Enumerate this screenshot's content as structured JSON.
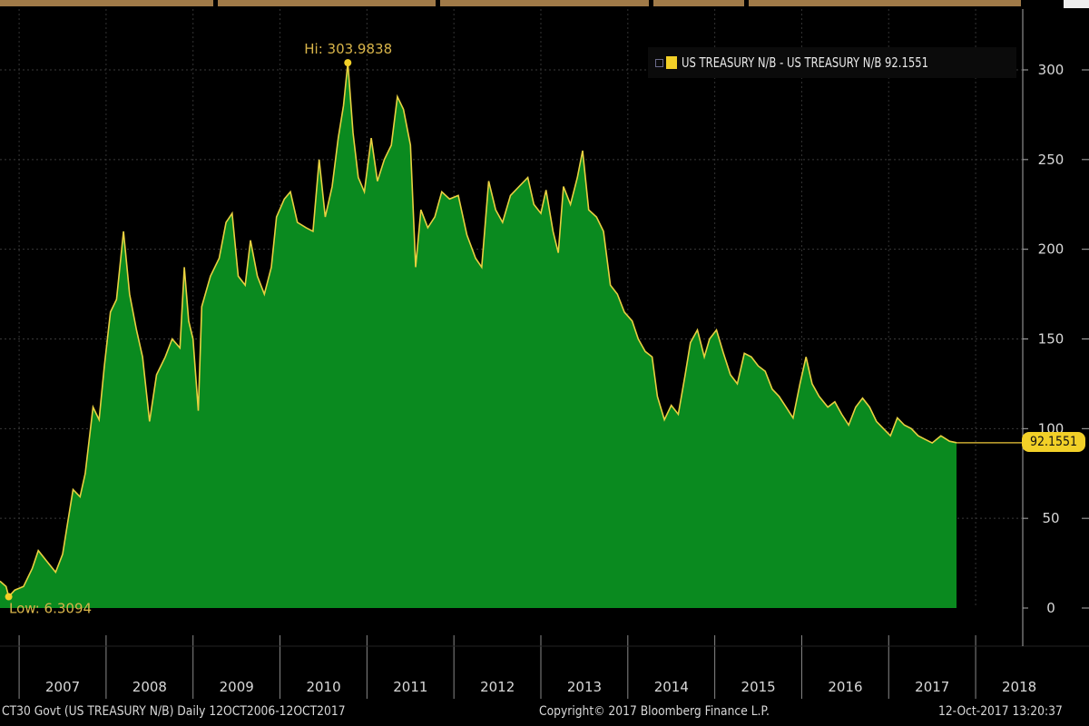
{
  "chart_data": {
    "type": "area",
    "title": "US TREASURY N/B - US TREASURY N/B",
    "legend": {
      "label": "US TREASURY N/B - US TREASURY N/B 92.1551",
      "placement": "top-right"
    },
    "x_ticks": [
      "2007",
      "2008",
      "2009",
      "2010",
      "2011",
      "2012",
      "2013",
      "2014",
      "2015",
      "2016",
      "2017",
      "2018"
    ],
    "xlim": [
      2006.78,
      2018.35
    ],
    "ylim": [
      -25,
      325
    ],
    "y_ticks": [
      0,
      50,
      100,
      150,
      200,
      250,
      300
    ],
    "y_tick_labels": [
      "0",
      "50",
      "100",
      "150",
      "200",
      "250",
      "300"
    ],
    "grid": true,
    "high": {
      "label": "Hi: 303.9838",
      "x": 2010.78,
      "value": 303.9838
    },
    "low": {
      "label": "Low: 6.3094",
      "x": 2006.88,
      "value": 6.3094
    },
    "last": {
      "label": "92.1551",
      "value": 92.1551
    },
    "series": [
      {
        "name": "US TREASURY N/B",
        "fill_color": "#0a8a1f",
        "line_color": "#e8d040",
        "points": [
          [
            2006.78,
            15
          ],
          [
            2006.85,
            12
          ],
          [
            2006.88,
            6.3094
          ],
          [
            2006.95,
            10
          ],
          [
            2007.05,
            12
          ],
          [
            2007.15,
            22
          ],
          [
            2007.22,
            32
          ],
          [
            2007.32,
            26
          ],
          [
            2007.42,
            20
          ],
          [
            2007.5,
            30
          ],
          [
            2007.56,
            48
          ],
          [
            2007.62,
            66
          ],
          [
            2007.7,
            62
          ],
          [
            2007.76,
            75
          ],
          [
            2007.85,
            112
          ],
          [
            2007.92,
            105
          ],
          [
            2007.98,
            135
          ],
          [
            2008.05,
            165
          ],
          [
            2008.12,
            172
          ],
          [
            2008.2,
            210
          ],
          [
            2008.27,
            175
          ],
          [
            2008.35,
            155
          ],
          [
            2008.42,
            140
          ],
          [
            2008.5,
            104
          ],
          [
            2008.58,
            130
          ],
          [
            2008.68,
            140
          ],
          [
            2008.76,
            150
          ],
          [
            2008.85,
            145
          ],
          [
            2008.9,
            190
          ],
          [
            2008.95,
            160
          ],
          [
            2009.0,
            150
          ],
          [
            2009.06,
            110
          ],
          [
            2009.1,
            168
          ],
          [
            2009.2,
            185
          ],
          [
            2009.3,
            195
          ],
          [
            2009.38,
            215
          ],
          [
            2009.45,
            220
          ],
          [
            2009.52,
            185
          ],
          [
            2009.6,
            180
          ],
          [
            2009.66,
            205
          ],
          [
            2009.74,
            185
          ],
          [
            2009.82,
            175
          ],
          [
            2009.9,
            190
          ],
          [
            2009.96,
            218
          ],
          [
            2010.05,
            228
          ],
          [
            2010.12,
            232
          ],
          [
            2010.2,
            215
          ],
          [
            2010.3,
            212
          ],
          [
            2010.38,
            210
          ],
          [
            2010.45,
            250
          ],
          [
            2010.52,
            218
          ],
          [
            2010.6,
            235
          ],
          [
            2010.67,
            262
          ],
          [
            2010.73,
            280
          ],
          [
            2010.78,
            303.9838
          ],
          [
            2010.84,
            265
          ],
          [
            2010.9,
            240
          ],
          [
            2010.97,
            232
          ],
          [
            2011.05,
            262
          ],
          [
            2011.12,
            238
          ],
          [
            2011.2,
            250
          ],
          [
            2011.28,
            258
          ],
          [
            2011.35,
            285
          ],
          [
            2011.42,
            278
          ],
          [
            2011.5,
            258
          ],
          [
            2011.56,
            190
          ],
          [
            2011.62,
            222
          ],
          [
            2011.7,
            212
          ],
          [
            2011.78,
            218
          ],
          [
            2011.86,
            232
          ],
          [
            2011.95,
            228
          ],
          [
            2012.05,
            230
          ],
          [
            2012.15,
            208
          ],
          [
            2012.25,
            195
          ],
          [
            2012.32,
            190
          ],
          [
            2012.4,
            238
          ],
          [
            2012.48,
            222
          ],
          [
            2012.56,
            215
          ],
          [
            2012.65,
            230
          ],
          [
            2012.75,
            235
          ],
          [
            2012.85,
            240
          ],
          [
            2012.92,
            225
          ],
          [
            2013.0,
            220
          ],
          [
            2013.06,
            233
          ],
          [
            2013.14,
            210
          ],
          [
            2013.2,
            198
          ],
          [
            2013.26,
            235
          ],
          [
            2013.34,
            225
          ],
          [
            2013.42,
            240
          ],
          [
            2013.48,
            255
          ],
          [
            2013.55,
            222
          ],
          [
            2013.64,
            218
          ],
          [
            2013.72,
            210
          ],
          [
            2013.8,
            180
          ],
          [
            2013.88,
            175
          ],
          [
            2013.96,
            165
          ],
          [
            2014.05,
            160
          ],
          [
            2014.12,
            150
          ],
          [
            2014.2,
            143
          ],
          [
            2014.28,
            140
          ],
          [
            2014.34,
            118
          ],
          [
            2014.42,
            105
          ],
          [
            2014.5,
            113
          ],
          [
            2014.58,
            108
          ],
          [
            2014.66,
            130
          ],
          [
            2014.72,
            148
          ],
          [
            2014.8,
            155
          ],
          [
            2014.88,
            140
          ],
          [
            2014.94,
            150
          ],
          [
            2015.02,
            155
          ],
          [
            2015.1,
            142
          ],
          [
            2015.18,
            130
          ],
          [
            2015.26,
            125
          ],
          [
            2015.34,
            142
          ],
          [
            2015.42,
            140
          ],
          [
            2015.5,
            135
          ],
          [
            2015.58,
            132
          ],
          [
            2015.66,
            122
          ],
          [
            2015.74,
            118
          ],
          [
            2015.82,
            112
          ],
          [
            2015.9,
            106
          ],
          [
            2015.98,
            125
          ],
          [
            2016.05,
            140
          ],
          [
            2016.12,
            125
          ],
          [
            2016.2,
            118
          ],
          [
            2016.3,
            112
          ],
          [
            2016.38,
            115
          ],
          [
            2016.46,
            108
          ],
          [
            2016.54,
            102
          ],
          [
            2016.62,
            112
          ],
          [
            2016.7,
            117
          ],
          [
            2016.78,
            112
          ],
          [
            2016.86,
            104
          ],
          [
            2016.94,
            100
          ],
          [
            2017.02,
            96
          ],
          [
            2017.1,
            106
          ],
          [
            2017.18,
            102
          ],
          [
            2017.26,
            100
          ],
          [
            2017.34,
            96
          ],
          [
            2017.42,
            94
          ],
          [
            2017.5,
            92
          ],
          [
            2017.6,
            96
          ],
          [
            2017.7,
            93
          ],
          [
            2017.78,
            92.1551
          ]
        ]
      }
    ]
  },
  "footer": {
    "security": "CT30 Govt (US TREASURY N/B)  Daily 12OCT2006-12OCT2017",
    "copyright": "Copyright© 2017 Bloomberg Finance L.P.",
    "timestamp": "12-Oct-2017 13:20:37"
  },
  "colors": {
    "background": "#000000",
    "area": "#0a8a1f",
    "line": "#e8d040",
    "accent": "#f2d028"
  }
}
